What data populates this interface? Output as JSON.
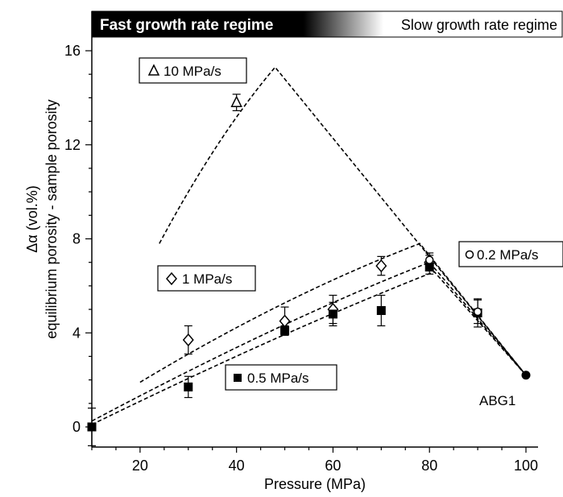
{
  "chart_data": {
    "type": "scatter",
    "banner": {
      "left_label": "Fast growth rate regime",
      "right_label": "Slow growth rate regime"
    },
    "xlabel": "Pressure (MPa)",
    "ylabel_line1": "Δα (vol.%)",
    "ylabel_line2": "equilibrium porosity - sample porosity",
    "xlim": [
      10,
      101
    ],
    "ylim": [
      -0.5,
      17
    ],
    "x_ticks": [
      20,
      40,
      60,
      80,
      100
    ],
    "y_ticks": [
      0,
      4,
      8,
      12,
      16
    ],
    "grid": false,
    "series": [
      {
        "name": "10 MPa/s",
        "marker": "triangle-open",
        "points": [
          {
            "x": 40,
            "y": 13.8,
            "err": 0.35
          }
        ]
      },
      {
        "name": "1 MPa/s",
        "marker": "diamond-open",
        "points": [
          {
            "x": 30,
            "y": 3.7,
            "err": 0.6
          },
          {
            "x": 50,
            "y": 4.5,
            "err": 0.6
          },
          {
            "x": 60,
            "y": 5.0,
            "err": 0.6
          },
          {
            "x": 70,
            "y": 6.85,
            "err": 0.4
          },
          {
            "x": 80,
            "y": 7.0,
            "err": 0.3
          }
        ]
      },
      {
        "name": "0.5 MPa/s",
        "marker": "square-filled",
        "points": [
          {
            "x": 10,
            "y": 0.0,
            "err": 0.8
          },
          {
            "x": 30,
            "y": 1.7,
            "err": 0.45
          },
          {
            "x": 50,
            "y": 4.1,
            "err": 0.2
          },
          {
            "x": 60,
            "y": 4.8,
            "err": 0.5
          },
          {
            "x": 70,
            "y": 4.95,
            "err": 0.65
          },
          {
            "x": 80,
            "y": 6.8,
            "err": 0.3
          },
          {
            "x": 90,
            "y": 4.85,
            "err": 0.6
          }
        ]
      },
      {
        "name": "0.2 MPa/s",
        "marker": "circle-open",
        "points": [
          {
            "x": 80,
            "y": 7.1,
            "err": 0.3
          },
          {
            "x": 90,
            "y": 4.9,
            "err": 0.5
          }
        ]
      },
      {
        "name": "ABG1",
        "marker": "circle-filled",
        "points": [
          {
            "x": 100,
            "y": 2.2,
            "err": 0
          }
        ]
      }
    ],
    "trend_lines": [
      {
        "series": "10 MPa/s",
        "points": [
          [
            24,
            7.8
          ],
          [
            36,
            12.4
          ],
          [
            48,
            15.3
          ],
          [
            100,
            2.2
          ]
        ]
      },
      {
        "series": "1 MPa/s",
        "points": [
          [
            20,
            1.9
          ],
          [
            50,
            5.6
          ],
          [
            78,
            7.8
          ],
          [
            100,
            2.2
          ]
        ]
      },
      {
        "series": "0.5 MPa/s a",
        "points": [
          [
            10,
            0.25
          ],
          [
            50,
            4.6
          ],
          [
            80,
            7.0
          ],
          [
            100,
            2.2
          ]
        ]
      },
      {
        "series": "0.5 MPa/s b",
        "points": [
          [
            10,
            0.1
          ],
          [
            50,
            4.1
          ],
          [
            81,
            6.6
          ],
          [
            100,
            2.2
          ]
        ]
      }
    ],
    "legend_labels": {
      "s10": "10 MPa/s",
      "s1": "1 MPa/s",
      "s05": "0.5 MPa/s",
      "s02": "0.2 MPa/s",
      "abg1": "ABG1"
    }
  }
}
